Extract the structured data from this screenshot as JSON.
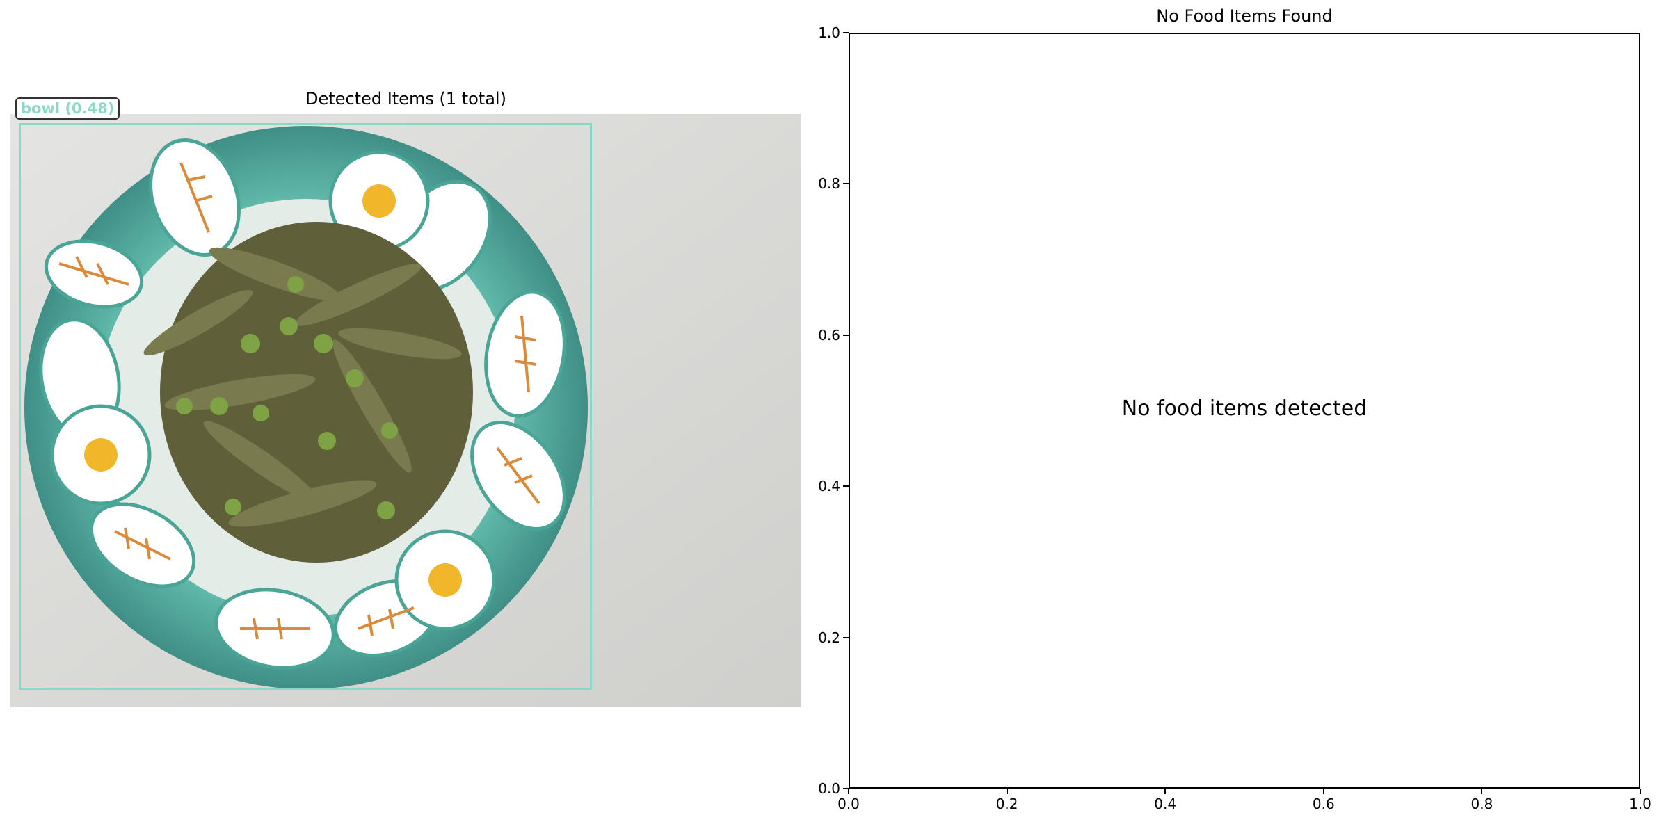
{
  "left_panel": {
    "title": "Detected Items (1 total)",
    "detection_label": "bowl (0.48)",
    "detection_color": "#8dd7c8"
  },
  "right_panel": {
    "title": "No Food Items Found",
    "message": "No food items detected"
  },
  "chart_data": [
    {
      "type": "table",
      "title": "Detected Items (1 total)",
      "detections": [
        {
          "label": "bowl",
          "score": 0.48
        }
      ]
    },
    {
      "type": "scatter",
      "title": "No Food Items Found",
      "xlabel": "",
      "ylabel": "",
      "xlim": [
        0,
        1
      ],
      "ylim": [
        0,
        1
      ],
      "xticks": [
        0.0,
        0.2,
        0.4,
        0.6,
        0.8,
        1.0
      ],
      "yticks": [
        0.0,
        0.2,
        0.4,
        0.6,
        0.8,
        1.0
      ],
      "xtick_labels": [
        "0.0",
        "0.2",
        "0.4",
        "0.6",
        "0.8",
        "1.0"
      ],
      "ytick_labels": [
        "0.0",
        "0.2",
        "0.4",
        "0.6",
        "0.8",
        "1.0"
      ],
      "series": [],
      "annotations": [
        "No food items detected"
      ],
      "grid": false
    }
  ]
}
